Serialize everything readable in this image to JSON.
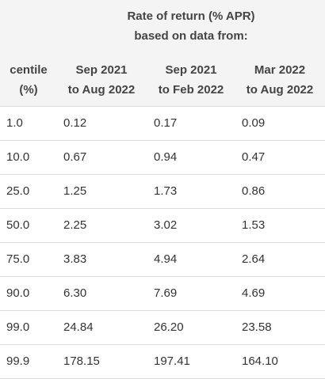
{
  "table": {
    "group_header": [
      "Rate of return (% APR)",
      "based on data from:"
    ],
    "columns": [
      [
        "centile",
        "(%)"
      ],
      [
        "Sep 2021",
        "to Aug 2022"
      ],
      [
        "Sep 2021",
        "to Feb 2022"
      ],
      [
        "Mar 2022",
        "to Aug 2022"
      ]
    ],
    "rows": [
      [
        "1.0",
        "0.12",
        "0.17",
        "0.09"
      ],
      [
        "10.0",
        "0.67",
        "0.94",
        "0.47"
      ],
      [
        "25.0",
        "1.25",
        "1.73",
        "0.86"
      ],
      [
        "50.0",
        "2.25",
        "3.02",
        "1.53"
      ],
      [
        "75.0",
        "3.83",
        "4.94",
        "2.64"
      ],
      [
        "90.0",
        "6.30",
        "7.69",
        "4.69"
      ],
      [
        "99.0",
        "24.84",
        "26.20",
        "23.58"
      ],
      [
        "99.9",
        "178.15",
        "197.41",
        "164.10"
      ]
    ]
  }
}
